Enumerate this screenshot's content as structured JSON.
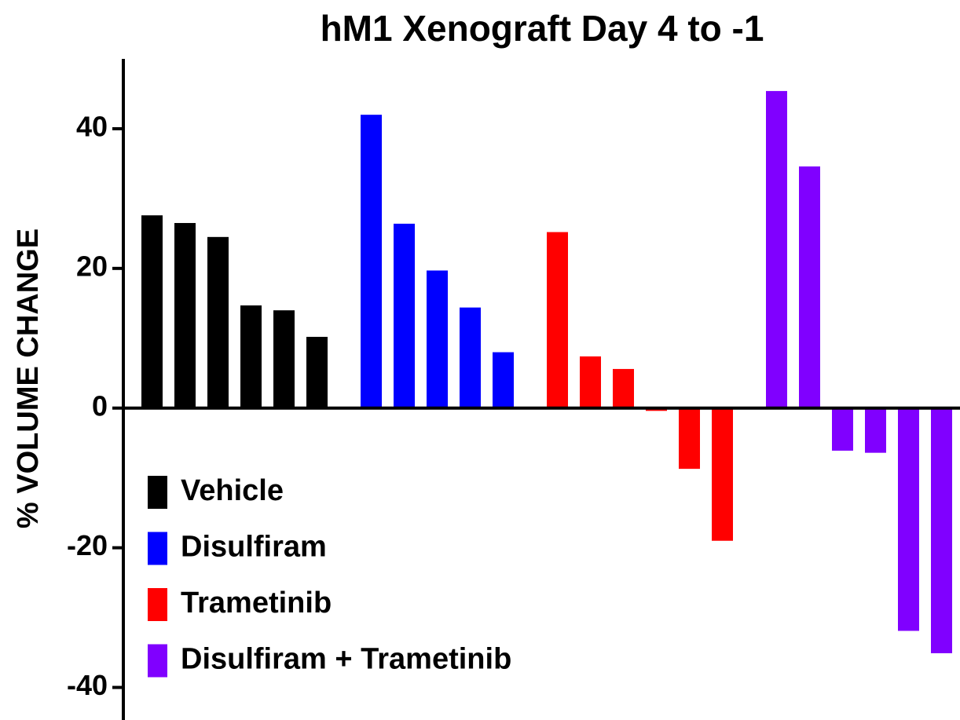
{
  "chart_data": {
    "type": "bar",
    "title": "hM1 Xenograft Day 4 to -1",
    "y_label": "% VOLUME CHANGE",
    "ylim": [
      -45,
      50
    ],
    "yticks": [
      -40,
      -20,
      0,
      20,
      40
    ],
    "legend": "lower left",
    "series": [
      {
        "name": "Vehicle",
        "color": "#000000",
        "values": [
          27.6,
          26.5,
          24.5,
          14.7,
          14.0,
          10.2
        ]
      },
      {
        "name": "Disulfiram",
        "color": "#0000ff",
        "values": [
          42.0,
          26.4,
          19.7,
          14.4,
          8.0
        ]
      },
      {
        "name": "Trametinib",
        "color": "#ff0000",
        "values": [
          25.2,
          7.4,
          5.6,
          -0.4,
          -8.7,
          -19.0
        ]
      },
      {
        "name": "Disulfiram + Trametinib",
        "color": "#8000ff",
        "values": [
          45.4,
          34.6,
          -6.1,
          -6.4,
          -31.9,
          -35.1
        ]
      }
    ]
  }
}
